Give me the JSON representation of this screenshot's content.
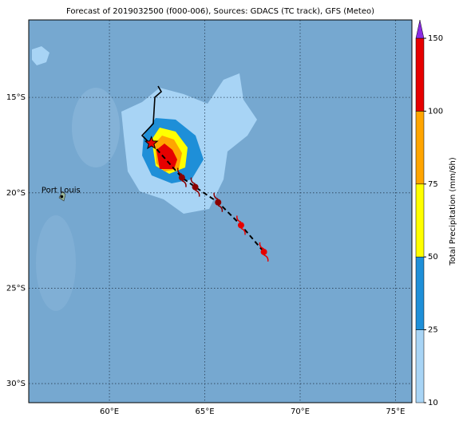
{
  "title": "Forecast of 2019032500 (f000-006), Sources: GDACS (TC track), GFS (Meteo)",
  "map": {
    "lonlim": [
      55.77,
      75.86
    ],
    "latlim": [
      -31.0,
      -10.94
    ],
    "lonticks": [
      {
        "value": 60,
        "label": "60°E"
      },
      {
        "value": 65,
        "label": "65°E"
      },
      {
        "value": 70,
        "label": "70°E"
      },
      {
        "value": 75,
        "label": "75°E"
      }
    ],
    "latticks": [
      {
        "value": -15,
        "label": "15°S"
      },
      {
        "value": -20,
        "label": "20°S"
      },
      {
        "value": -25,
        "label": "25°S"
      },
      {
        "value": -30,
        "label": "30°S"
      }
    ],
    "place": {
      "label": "Port Louis",
      "lon": 57.5,
      "lat": -20.2
    },
    "current": {
      "lon": 62.2,
      "lat": -17.4
    },
    "forecast": {
      "lon": [
        63.8,
        64.5,
        65.7,
        66.9,
        68.1
      ],
      "lat": [
        -19.2,
        -19.7,
        -20.5,
        -21.7,
        -23.1
      ]
    }
  },
  "colorbar": {
    "label": "Total Precipitation (mm/6h)",
    "ticks": [
      10,
      25,
      50,
      75,
      100,
      150
    ],
    "colors": [
      "#a8d4f5",
      "#1e8fd8",
      "#ffff00",
      "#ffa500",
      "#e60000"
    ],
    "extend_color": "#8a2be2"
  }
}
